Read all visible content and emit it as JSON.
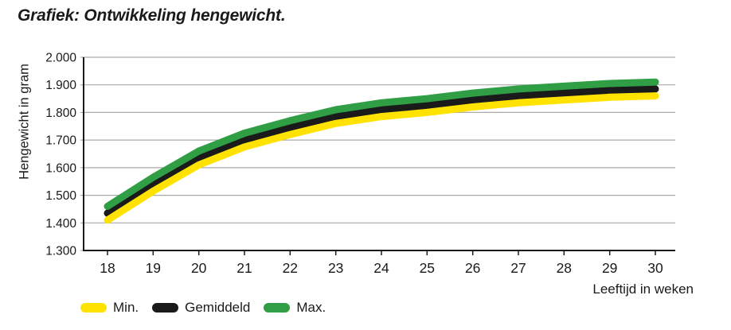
{
  "title": "Grafiek: Ontwikkeling hengewicht.",
  "chart_data": {
    "type": "line",
    "x": [
      18,
      19,
      20,
      21,
      22,
      23,
      24,
      25,
      26,
      27,
      28,
      29,
      30
    ],
    "series": [
      {
        "name": "Min.",
        "color": "#FFE200",
        "values": [
          1410,
          1515,
          1610,
          1675,
          1720,
          1760,
          1785,
          1800,
          1820,
          1835,
          1845,
          1855,
          1860
        ]
      },
      {
        "name": "Gemiddeld",
        "color": "#1A1A1A",
        "values": [
          1435,
          1540,
          1635,
          1700,
          1745,
          1785,
          1810,
          1825,
          1845,
          1860,
          1870,
          1880,
          1885
        ]
      },
      {
        "name": "Max.",
        "color": "#2F9E44",
        "values": [
          1460,
          1565,
          1660,
          1725,
          1770,
          1810,
          1835,
          1850,
          1870,
          1885,
          1895,
          1905,
          1910
        ]
      }
    ],
    "xlabel": "Leeftijd in weken",
    "ylabel": "Hengewicht in gram",
    "ylim": [
      1300,
      2000
    ],
    "ytick_step": 100,
    "ytick_labels": [
      "1.300",
      "1.400",
      "1.500",
      "1.600",
      "1.700",
      "1.800",
      "1.900",
      "2.000"
    ],
    "xtick_labels": [
      "18",
      "19",
      "20",
      "21",
      "22",
      "23",
      "24",
      "25",
      "26",
      "27",
      "28",
      "29",
      "30"
    ],
    "grid": true,
    "legend_position": "bottom-left"
  },
  "colors": {
    "text": "#1A1A1A",
    "gridline": "#A9A9A9",
    "axis": "#1A1A1A",
    "background": "#FFFFFF"
  }
}
